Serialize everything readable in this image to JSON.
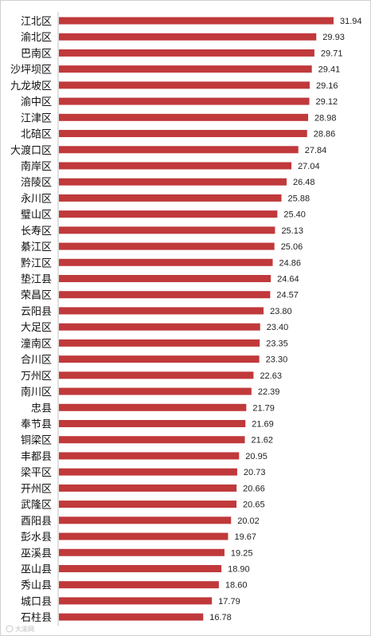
{
  "chart_data": {
    "type": "bar",
    "orientation": "horizontal",
    "title": "",
    "xlabel": "",
    "ylabel": "",
    "categories": [
      "江北区",
      "渝北区",
      "巴南区",
      "沙坪坝区",
      "九龙坡区",
      "渝中区",
      "江津区",
      "北碚区",
      "大渡口区",
      "南岸区",
      "涪陵区",
      "永川区",
      "璧山区",
      "长寿区",
      "綦江区",
      "黔江区",
      "垫江县",
      "荣昌区",
      "云阳县",
      "大足区",
      "潼南区",
      "合川区",
      "万州区",
      "南川区",
      "忠县",
      "奉节县",
      "铜梁区",
      "丰都县",
      "梁平区",
      "开州区",
      "武隆区",
      "酉阳县",
      "彭水县",
      "巫溪县",
      "巫山县",
      "秀山县",
      "城口县",
      "石柱县"
    ],
    "values": [
      31.94,
      29.93,
      29.71,
      29.41,
      29.16,
      29.12,
      28.98,
      28.86,
      27.84,
      27.04,
      26.48,
      25.88,
      25.4,
      25.13,
      25.06,
      24.86,
      24.64,
      24.57,
      23.8,
      23.4,
      23.35,
      23.3,
      22.63,
      22.39,
      21.79,
      21.69,
      21.62,
      20.95,
      20.73,
      20.66,
      20.65,
      20.02,
      19.67,
      19.25,
      18.9,
      18.6,
      17.79,
      16.78
    ],
    "value_labels": [
      "31.94",
      "29.93",
      "29.71",
      "29.41",
      "29.16",
      "29.12",
      "28.98",
      "28.86",
      "27.84",
      "27.04",
      "26.48",
      "25.88",
      "25.40",
      "25.13",
      "25.06",
      "24.86",
      "24.64",
      "24.57",
      "23.80",
      "23.40",
      "23.35",
      "23.30",
      "22.63",
      "22.39",
      "21.79",
      "21.69",
      "21.62",
      "20.95",
      "20.73",
      "20.66",
      "20.65",
      "20.02",
      "19.67",
      "19.25",
      "18.90",
      "18.60",
      "17.79",
      "16.78"
    ],
    "xlim": [
      0,
      31.94
    ],
    "bar_color": "#c0393b",
    "grid": false,
    "legend": "none"
  },
  "watermark": {
    "text": "大渝网"
  }
}
